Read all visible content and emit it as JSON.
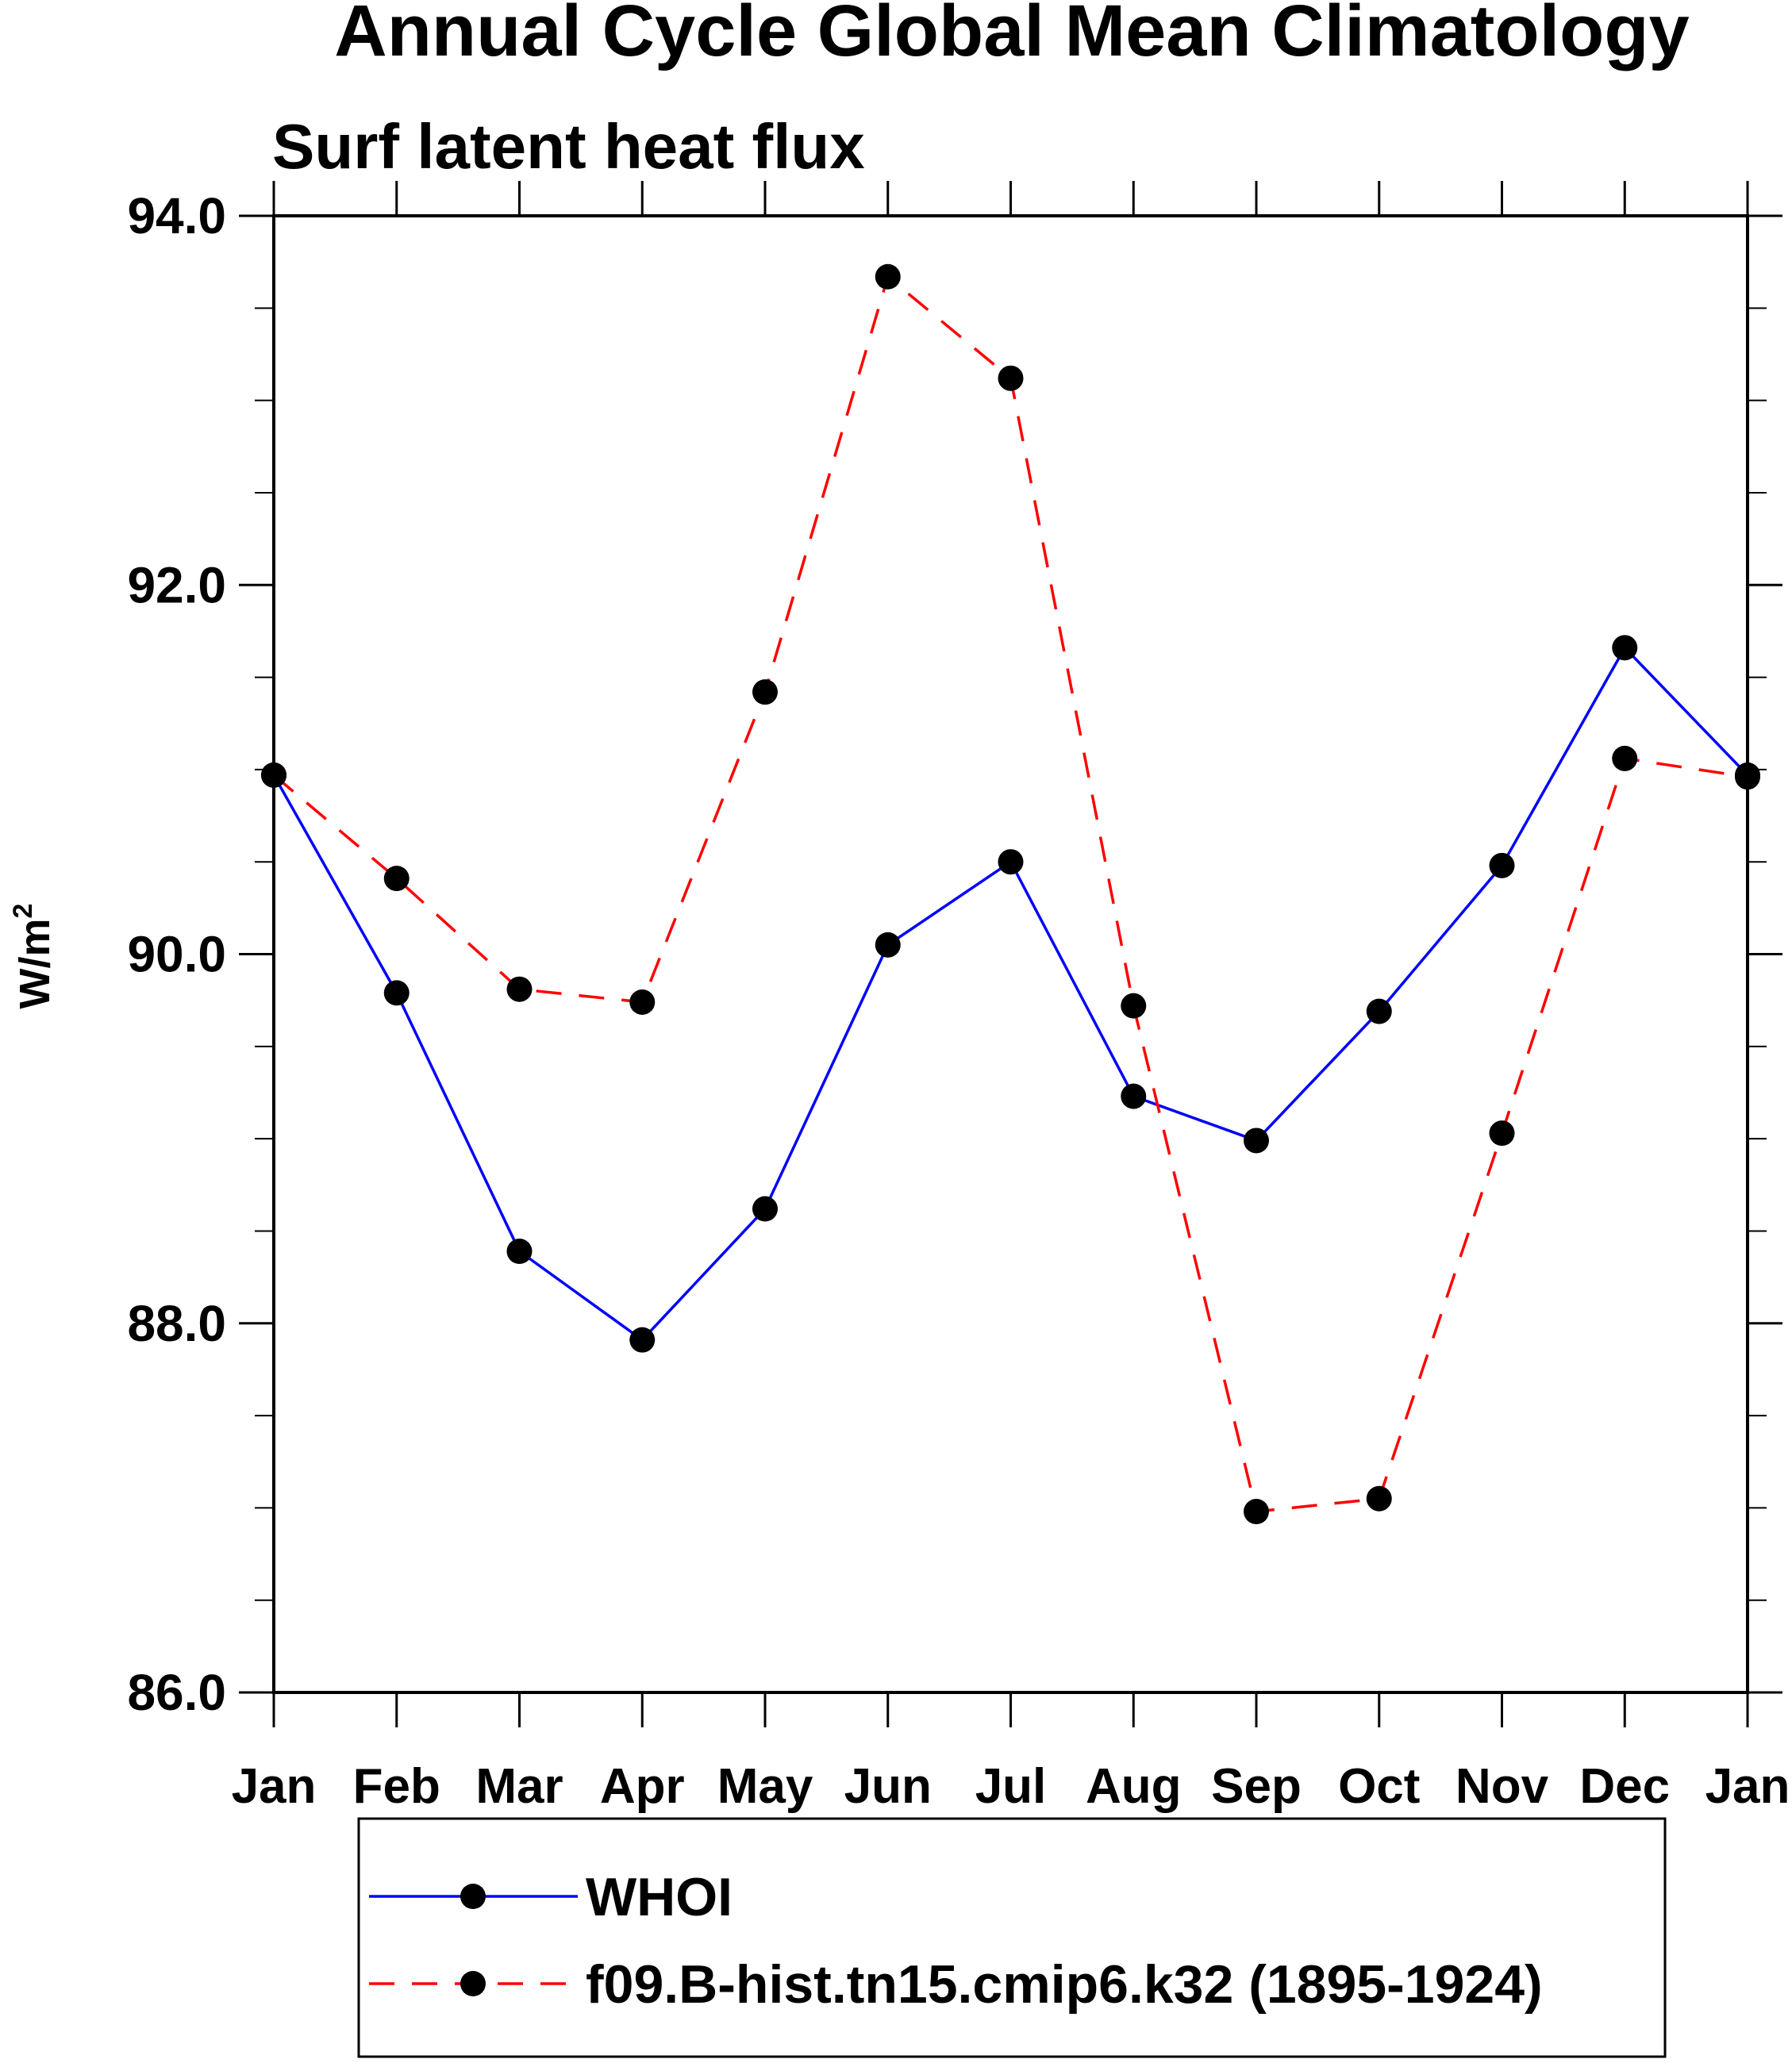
{
  "chart_data": {
    "type": "line",
    "title": "Annual Cycle Global Mean Climatology",
    "subtitle": "Surf latent heat flux",
    "xlabel": "",
    "ylabel": "W/m",
    "ylabel_superscript": "2",
    "categories": [
      "Jan",
      "Feb",
      "Mar",
      "Apr",
      "May",
      "Jun",
      "Jul",
      "Aug",
      "Sep",
      "Oct",
      "Nov",
      "Dec",
      "Jan"
    ],
    "ylim": [
      86.0,
      94.0
    ],
    "yticks": [
      "86.0",
      "88.0",
      "90.0",
      "92.0",
      "94.0"
    ],
    "series": [
      {
        "name": "WHOI",
        "color": "#0000ff",
        "dash": "solid",
        "values": [
          90.97,
          89.79,
          88.39,
          87.91,
          88.62,
          90.05,
          90.5,
          89.23,
          88.99,
          89.69,
          90.48,
          91.66,
          90.97
        ]
      },
      {
        "name": "f09.B-hist.tn15.cmip6.k32 (1895-1924)",
        "color": "#ff0000",
        "dash": "dashed",
        "values": [
          90.97,
          90.41,
          89.81,
          89.74,
          91.42,
          93.67,
          93.12,
          89.72,
          86.98,
          87.05,
          89.03,
          91.06,
          90.96
        ]
      }
    ],
    "legend_position": "bottom"
  }
}
